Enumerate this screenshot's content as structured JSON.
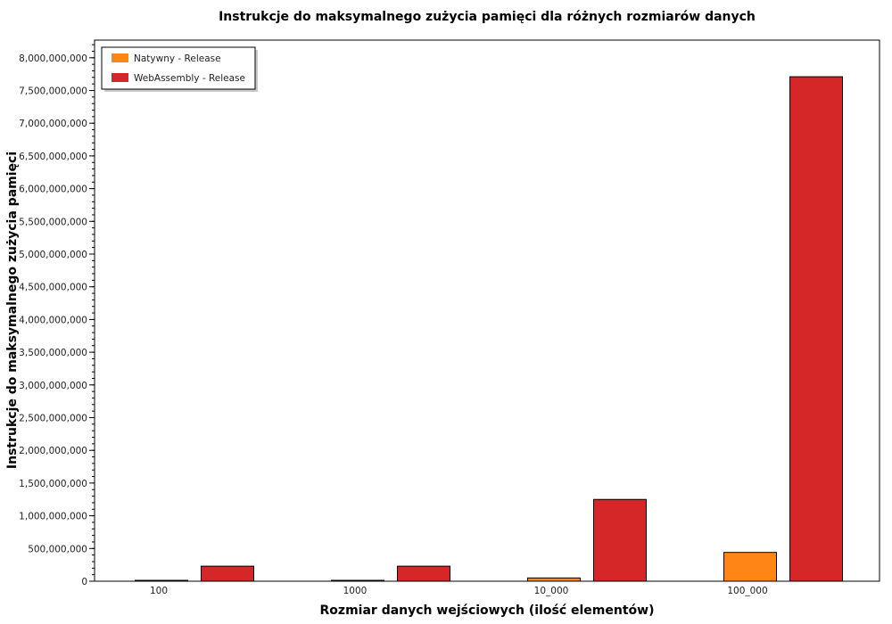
{
  "chart_data": {
    "type": "bar",
    "title": "Instrukcje do maksymalnego zużycia pamięci dla różnych rozmiarów danych",
    "xlabel": "Rozmiar danych wejściowych (ilość elementów)",
    "ylabel": "Instrukcje do maksymalnego zużycia pamięci",
    "categories": [
      "100",
      "1000",
      "10_000",
      "100_000"
    ],
    "ylim": [
      0,
      8300000000
    ],
    "yticks": [
      {
        "value": 0,
        "label": "0"
      },
      {
        "value": 500000000,
        "label": "500,000,000"
      },
      {
        "value": 1000000000,
        "label": "1,000,000,000"
      },
      {
        "value": 1500000000,
        "label": "1,500,000,000"
      },
      {
        "value": 2000000000,
        "label": "2,000,000,000"
      },
      {
        "value": 2500000000,
        "label": "2,500,000,000"
      },
      {
        "value": 3000000000,
        "label": "3,000,000,000"
      },
      {
        "value": 3500000000,
        "label": "3,500,000,000"
      },
      {
        "value": 4000000000,
        "label": "4,000,000,000"
      },
      {
        "value": 4500000000,
        "label": "4,500,000,000"
      },
      {
        "value": 5000000000,
        "label": "5,000,000,000"
      },
      {
        "value": 5500000000,
        "label": "5,500,000,000"
      },
      {
        "value": 6000000000,
        "label": "6,000,000,000"
      },
      {
        "value": 6500000000,
        "label": "6,500,000,000"
      },
      {
        "value": 7000000000,
        "label": "7,000,000,000"
      },
      {
        "value": 7500000000,
        "label": "7,500,000,000"
      },
      {
        "value": 8000000000,
        "label": "8,000,000,000"
      }
    ],
    "series": [
      {
        "name": "Natywny - Release",
        "color": "#ff8515",
        "values": [
          1000000,
          5000000,
          50000000,
          440000000
        ]
      },
      {
        "name": "WebAssembly - Release",
        "color": "#d62728",
        "values": [
          230000000,
          230000000,
          1250000000,
          7710000000
        ]
      }
    ],
    "legend_position": "top-left",
    "grid": false
  }
}
